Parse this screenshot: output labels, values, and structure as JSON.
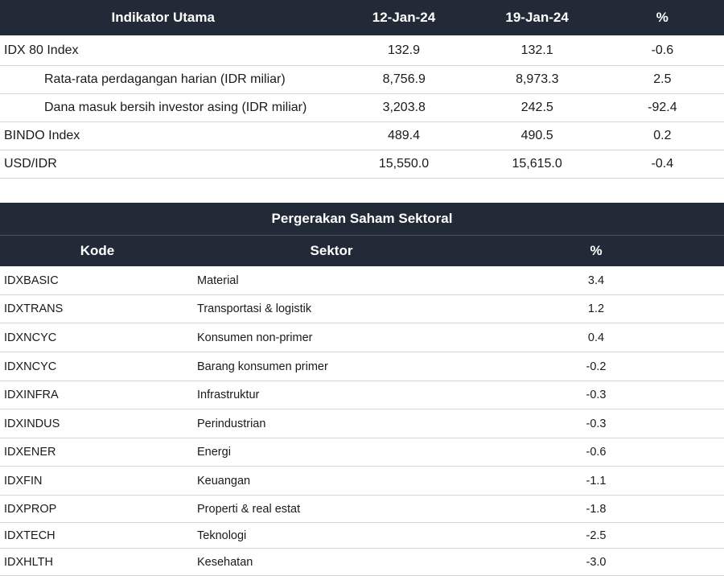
{
  "indikator": {
    "headers": {
      "label": "Indikator Utama",
      "date1": "12-Jan-24",
      "date2": "19-Jan-24",
      "pct": "%"
    },
    "rows": [
      {
        "label": "IDX 80 Index",
        "v1": "132.9",
        "v2": "132.1",
        "pct": "-0.6"
      },
      {
        "label": "Rata-rata perdagangan harian (IDR miliar)",
        "v1": "8,756.9",
        "v2": "8,973.3",
        "pct": "2.5"
      },
      {
        "label": "Dana masuk bersih investor asing (IDR miliar)",
        "v1": "3,203.8",
        "v2": "242.5",
        "pct": "-92.4"
      },
      {
        "label": "BINDO Index",
        "v1": "489.4",
        "v2": "490.5",
        "pct": "0.2"
      },
      {
        "label": "USD/IDR",
        "v1": "15,550.0",
        "v2": "15,615.0",
        "pct": "-0.4"
      }
    ]
  },
  "sektoral": {
    "title": "Pergerakan Saham Sektoral",
    "headers": {
      "code": "Kode",
      "sector": "Sektor",
      "pct": "%"
    },
    "rows": [
      {
        "code": "IDXBASIC",
        "sector": "Material",
        "pct": "3.4"
      },
      {
        "code": "IDXTRANS",
        "sector": "Transportasi & logistik",
        "pct": "1.2"
      },
      {
        "code": "IDXNCYC",
        "sector": "Konsumen non-primer",
        "pct": "0.4"
      },
      {
        "code": "IDXNCYC",
        "sector": "Barang konsumen primer",
        "pct": "-0.2"
      },
      {
        "code": "IDXINFRA",
        "sector": "Infrastruktur",
        "pct": "-0.3"
      },
      {
        "code": "IDXINDUS",
        "sector": "Perindustrian",
        "pct": "-0.3"
      },
      {
        "code": "IDXENER",
        "sector": "Energi",
        "pct": "-0.6"
      },
      {
        "code": "IDXFIN",
        "sector": "Keuangan",
        "pct": "-1.1"
      },
      {
        "code": "IDXPROP",
        "sector": "Properti & real estat",
        "pct": "-1.8"
      },
      {
        "code": "IDXTECH",
        "sector": "Teknologi",
        "pct": "-2.5"
      },
      {
        "code": "IDXHLTH",
        "sector": "Kesehatan",
        "pct": "-3.0"
      }
    ]
  }
}
